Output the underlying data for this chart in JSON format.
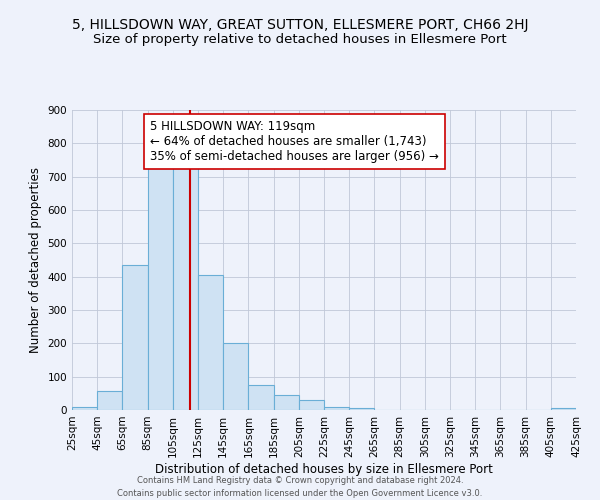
{
  "title": "5, HILLSDOWN WAY, GREAT SUTTON, ELLESMERE PORT, CH66 2HJ",
  "subtitle": "Size of property relative to detached houses in Ellesmere Port",
  "xlabel": "Distribution of detached houses by size in Ellesmere Port",
  "ylabel": "Number of detached properties",
  "bin_edges": [
    25,
    45,
    65,
    85,
    105,
    125,
    145,
    165,
    185,
    205,
    225,
    245,
    265,
    285,
    305,
    325,
    345,
    365,
    385,
    405,
    425
  ],
  "bin_counts": [
    10,
    57,
    435,
    745,
    730,
    405,
    200,
    75,
    45,
    30,
    10,
    5,
    0,
    0,
    0,
    0,
    0,
    0,
    0,
    5
  ],
  "bar_facecolor": "#cfe2f3",
  "bar_edgecolor": "#6aaed6",
  "property_size": 119,
  "vline_color": "#cc0000",
  "annotation_line1": "5 HILLSDOWN WAY: 119sqm",
  "annotation_line2": "← 64% of detached houses are smaller (1,743)",
  "annotation_line3": "35% of semi-detached houses are larger (956) →",
  "annotation_box_edgecolor": "#cc0000",
  "annotation_box_facecolor": "#ffffff",
  "ylim": [
    0,
    900
  ],
  "yticks": [
    0,
    100,
    200,
    300,
    400,
    500,
    600,
    700,
    800,
    900
  ],
  "grid_color": "#c0c8d8",
  "background_color": "#eef2fb",
  "footer_line1": "Contains HM Land Registry data © Crown copyright and database right 2024.",
  "footer_line2": "Contains public sector information licensed under the Open Government Licence v3.0.",
  "title_fontsize": 10,
  "subtitle_fontsize": 9.5,
  "annotation_fontsize": 8.5,
  "axis_fontsize": 8.5,
  "tick_fontsize": 7.5,
  "footer_fontsize": 6.0
}
